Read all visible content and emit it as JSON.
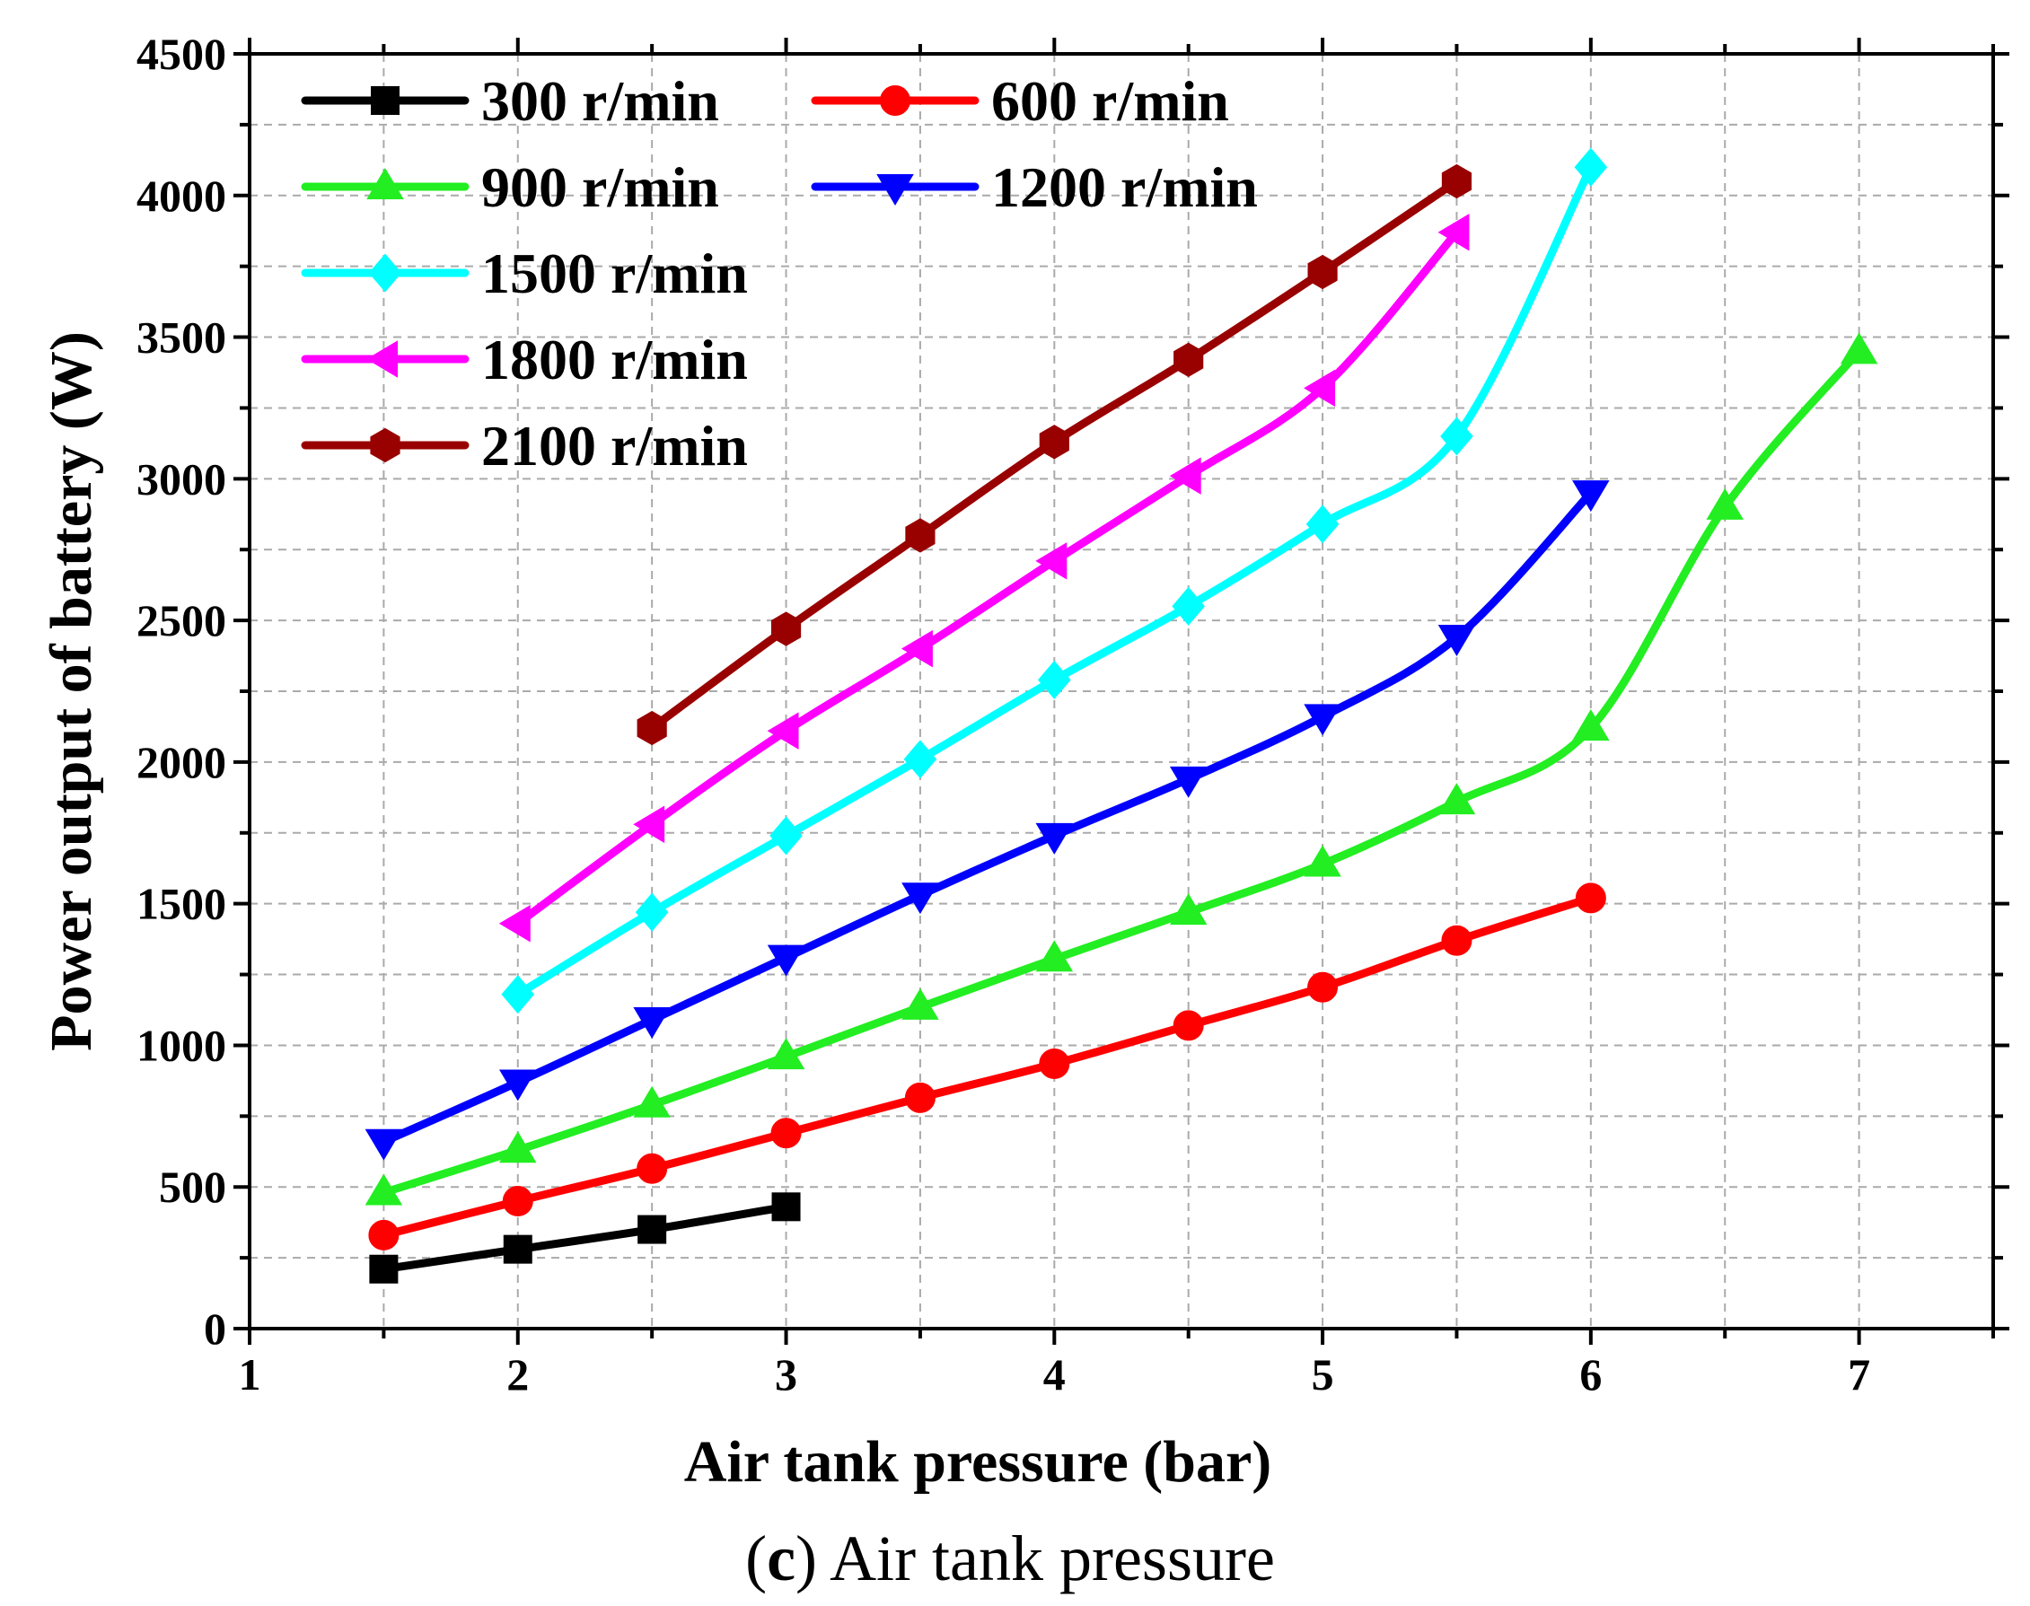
{
  "chart_data": {
    "type": "line",
    "title": "",
    "xlabel": "Air tank pressure (bar)",
    "ylabel": "Power output of battery (W)",
    "caption_label": "c",
    "caption_open": "(",
    "caption_close": ")",
    "caption_text": "Air tank pressure",
    "xlim": [
      1,
      7.5
    ],
    "ylim": [
      0,
      4500
    ],
    "xticks": [
      1,
      2,
      3,
      4,
      5,
      6,
      7
    ],
    "yticks": [
      0,
      500,
      1000,
      1500,
      2000,
      2500,
      3000,
      3500,
      4000,
      4500
    ],
    "grid": true,
    "legend_position": "top-left",
    "series": [
      {
        "name": "300 r/min",
        "color": "#000000",
        "marker": "square",
        "x": [
          1.5,
          2,
          2.5,
          3
        ],
        "values": [
          210,
          280,
          350,
          430
        ]
      },
      {
        "name": "600 r/min",
        "color": "#ff0000",
        "marker": "circle",
        "x": [
          1.5,
          2,
          2.5,
          3,
          3.5,
          4,
          4.5,
          5,
          5.5,
          6
        ],
        "values": [
          330,
          450,
          565,
          690,
          815,
          935,
          1070,
          1205,
          1370,
          1520
        ]
      },
      {
        "name": "900 r/min",
        "color": "#22ee22",
        "marker": "triangle-up",
        "x": [
          1.5,
          2,
          2.5,
          3,
          3.5,
          4,
          4.5,
          5,
          5.5,
          6,
          6.5,
          7
        ],
        "values": [
          480,
          630,
          790,
          960,
          1135,
          1305,
          1470,
          1640,
          1860,
          2120,
          2900,
          3450
        ]
      },
      {
        "name": "1200 r/min",
        "color": "#0000ff",
        "marker": "triangle-down",
        "x": [
          1.5,
          2,
          2.5,
          3,
          3.5,
          4,
          4.5,
          5,
          5.5,
          6
        ],
        "values": [
          660,
          870,
          1090,
          1310,
          1530,
          1740,
          1940,
          2160,
          2440,
          2950
        ]
      },
      {
        "name": "1500 r/min",
        "color": "#00ffff",
        "marker": "diamond",
        "x": [
          2,
          2.5,
          3,
          3.5,
          4,
          4.5,
          5,
          5.5,
          6
        ],
        "values": [
          1180,
          1470,
          1740,
          2010,
          2290,
          2550,
          2840,
          3150,
          4100
        ]
      },
      {
        "name": "1800 r/min",
        "color": "#ff00ff",
        "marker": "triangle-left",
        "x": [
          2,
          2.5,
          3,
          3.5,
          4,
          4.5,
          5,
          5.5
        ],
        "values": [
          1430,
          1780,
          2110,
          2400,
          2710,
          3010,
          3320,
          3870
        ]
      },
      {
        "name": "2100 r/min",
        "color": "#990000",
        "marker": "hexagon",
        "x": [
          2.5,
          3,
          3.5,
          4,
          4.5,
          5,
          5.5
        ],
        "values": [
          2120,
          2470,
          2800,
          3130,
          3420,
          3730,
          4050
        ]
      }
    ]
  }
}
